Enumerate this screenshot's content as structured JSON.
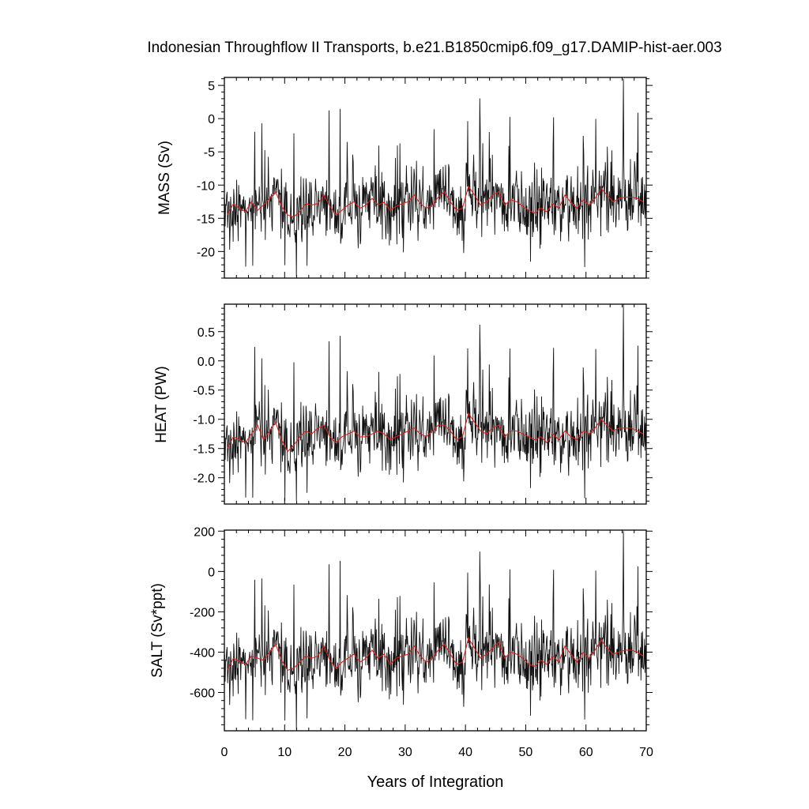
{
  "chart_data": {
    "type": "line",
    "title": "Indonesian Throughflow II Transports, b.e21.B1850cmip6.f09_g17.DAMIP-hist-aer.003",
    "xlabel": "Years of Integration",
    "xlim": [
      0,
      70
    ],
    "xticks": [
      0,
      10,
      20,
      30,
      40,
      50,
      60,
      70
    ],
    "panels": [
      {
        "ylabel": "MASS (Sv)",
        "ylim": [
          -24,
          6.2
        ],
        "yticks": [
          5,
          0,
          -5,
          -10,
          -15,
          -20
        ],
        "yticklabels": [
          "5",
          "0",
          "-5",
          "-10",
          "-15",
          "-20"
        ],
        "annual_mean": {
          "x": [
            0.5,
            1.5,
            2.5,
            3.5,
            4.5,
            5.5,
            6.5,
            7.5,
            8.5,
            9.5,
            10.5,
            11.5,
            12.5,
            13.5,
            14.5,
            15.5,
            16.5,
            17.5,
            18.5,
            19.5,
            20.5,
            21.5,
            22.5,
            23.5,
            24.5,
            25.5,
            26.5,
            27.5,
            28.5,
            29.5,
            30.5,
            31.5,
            32.5,
            33.5,
            34.5,
            35.5,
            36.5,
            37.5,
            38.5,
            39.5,
            40.5,
            41.5,
            42.5,
            43.5,
            44.5,
            45.5,
            46.5,
            47.5,
            48.5,
            49.5,
            50.5,
            51.5,
            52.5,
            53.5,
            54.5,
            55.5,
            56.5,
            57.5,
            58.5,
            59.5,
            60.5,
            61.5,
            62.5,
            63.5,
            64.5,
            65.5,
            66.5,
            67.5,
            68.5,
            69.5
          ],
          "y": [
            -14.5,
            -12.8,
            -13.5,
            -14.0,
            -12.5,
            -13.8,
            -13.0,
            -12.0,
            -11.0,
            -13.2,
            -14.5,
            -14.8,
            -14.0,
            -12.8,
            -13.0,
            -12.8,
            -11.5,
            -13.2,
            -14.5,
            -13.8,
            -13.0,
            -12.5,
            -13.5,
            -13.0,
            -12.0,
            -13.0,
            -12.6,
            -13.8,
            -13.2,
            -12.8,
            -12.5,
            -11.5,
            -12.8,
            -13.5,
            -13.0,
            -11.8,
            -11.0,
            -12.5,
            -13.8,
            -13.5,
            -10.2,
            -11.5,
            -13.0,
            -12.5,
            -11.5,
            -11.0,
            -13.0,
            -12.2,
            -12.5,
            -13.2,
            -13.8,
            -14.2,
            -13.5,
            -14.0,
            -12.8,
            -13.5,
            -11.5,
            -12.6,
            -13.5,
            -12.2,
            -13.0,
            -12.0,
            -10.5,
            -11.5,
            -12.5,
            -12.0,
            -11.8,
            -11.8,
            -12.0,
            -12.5
          ]
        },
        "monthly_range": [
          -23.8,
          6.0
        ]
      },
      {
        "ylabel": "HEAT (PW)",
        "ylim": [
          -2.45,
          0.97
        ],
        "yticks": [
          0.5,
          0.0,
          -0.5,
          -1.0,
          -1.5,
          -2.0
        ],
        "yticklabels": [
          "0.5",
          "0.0",
          "-0.5",
          "-1.0",
          "-1.5",
          "-2.0"
        ],
        "annual_mean": {
          "x": [
            0.5,
            1.5,
            2.5,
            3.5,
            4.5,
            5.5,
            6.5,
            7.5,
            8.5,
            9.5,
            10.5,
            11.5,
            12.5,
            13.5,
            14.5,
            15.5,
            16.5,
            17.5,
            18.5,
            19.5,
            20.5,
            21.5,
            22.5,
            23.5,
            24.5,
            25.5,
            26.5,
            27.5,
            28.5,
            29.5,
            30.5,
            31.5,
            32.5,
            33.5,
            34.5,
            35.5,
            36.5,
            37.5,
            38.5,
            39.5,
            40.5,
            41.5,
            42.5,
            43.5,
            44.5,
            45.5,
            46.5,
            47.5,
            48.5,
            49.5,
            50.5,
            51.5,
            52.5,
            53.5,
            54.5,
            55.5,
            56.5,
            57.5,
            58.5,
            59.5,
            60.5,
            61.5,
            62.5,
            63.5,
            64.5,
            65.5,
            66.5,
            67.5,
            68.5,
            69.5
          ],
          "y": [
            -1.5,
            -1.3,
            -1.35,
            -1.4,
            -1.25,
            -1.1,
            -1.35,
            -1.2,
            -1.05,
            -1.35,
            -1.55,
            -1.45,
            -1.3,
            -1.2,
            -1.25,
            -1.15,
            -1.1,
            -1.3,
            -1.4,
            -1.3,
            -1.25,
            -1.2,
            -1.3,
            -1.3,
            -1.25,
            -1.2,
            -1.25,
            -1.35,
            -1.3,
            -1.25,
            -1.2,
            -1.15,
            -1.25,
            -1.3,
            -1.2,
            -1.1,
            -1.1,
            -1.2,
            -1.35,
            -1.3,
            -0.9,
            -1.05,
            -1.2,
            -1.25,
            -1.15,
            -1.1,
            -1.3,
            -1.2,
            -1.2,
            -1.25,
            -1.3,
            -1.35,
            -1.3,
            -1.4,
            -1.25,
            -1.35,
            -1.2,
            -1.3,
            -1.35,
            -1.2,
            -1.25,
            -1.15,
            -1.0,
            -1.1,
            -1.2,
            -1.15,
            -1.15,
            -1.15,
            -1.2,
            -1.25
          ]
        },
        "monthly_range": [
          -2.4,
          0.97
        ]
      },
      {
        "ylabel": "SALT (Sv*ppt)",
        "ylim": [
          -790,
          205
        ],
        "yticks": [
          200,
          0,
          -200,
          -400,
          -600
        ],
        "yticklabels": [
          "200",
          "0",
          "-200",
          "-400",
          "-600"
        ],
        "annual_mean": {
          "x": [
            0.5,
            1.5,
            2.5,
            3.5,
            4.5,
            5.5,
            6.5,
            7.5,
            8.5,
            9.5,
            10.5,
            11.5,
            12.5,
            13.5,
            14.5,
            15.5,
            16.5,
            17.5,
            18.5,
            19.5,
            20.5,
            21.5,
            22.5,
            23.5,
            24.5,
            25.5,
            26.5,
            27.5,
            28.5,
            29.5,
            30.5,
            31.5,
            32.5,
            33.5,
            34.5,
            35.5,
            36.5,
            37.5,
            38.5,
            39.5,
            40.5,
            41.5,
            42.5,
            43.5,
            44.5,
            45.5,
            46.5,
            47.5,
            48.5,
            49.5,
            50.5,
            51.5,
            52.5,
            53.5,
            54.5,
            55.5,
            56.5,
            57.5,
            58.5,
            59.5,
            60.5,
            61.5,
            62.5,
            63.5,
            64.5,
            65.5,
            66.5,
            67.5,
            68.5,
            69.5
          ],
          "y": [
            -490,
            -430,
            -445,
            -460,
            -420,
            -430,
            -440,
            -400,
            -360,
            -440,
            -490,
            -480,
            -450,
            -420,
            -430,
            -420,
            -370,
            -440,
            -480,
            -450,
            -430,
            -410,
            -450,
            -430,
            -390,
            -430,
            -410,
            -460,
            -430,
            -420,
            -410,
            -370,
            -420,
            -450,
            -430,
            -390,
            -360,
            -410,
            -460,
            -450,
            -330,
            -380,
            -430,
            -410,
            -380,
            -350,
            -430,
            -400,
            -410,
            -430,
            -460,
            -470,
            -440,
            -460,
            -420,
            -450,
            -370,
            -410,
            -450,
            -400,
            -430,
            -390,
            -340,
            -380,
            -410,
            -400,
            -390,
            -390,
            -400,
            -420
          ]
        },
        "monthly_range": [
          -785,
          200
        ]
      }
    ]
  }
}
